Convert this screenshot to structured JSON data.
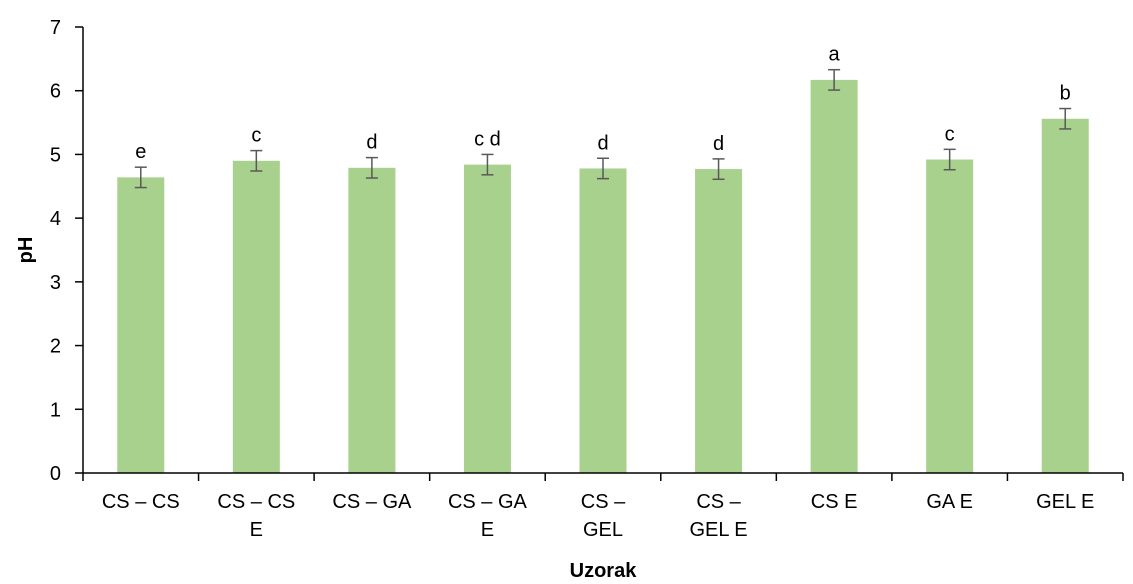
{
  "chart_data": {
    "type": "bar",
    "title": "",
    "xlabel": "Uzorak",
    "ylabel": "pH",
    "ylim": [
      0,
      7
    ],
    "yticks": [
      0,
      1,
      2,
      3,
      4,
      5,
      6,
      7
    ],
    "grid": false,
    "legend": "none",
    "bar_color": "#a9d18e",
    "error_bar_color": "#595959",
    "categories": [
      [
        "CS – CS"
      ],
      [
        "CS – CS",
        "E"
      ],
      [
        "CS – GA"
      ],
      [
        "CS – GA",
        "E"
      ],
      [
        "CS –",
        "GEL"
      ],
      [
        "CS –",
        "GEL E"
      ],
      [
        "CS E"
      ],
      [
        "GA E"
      ],
      [
        "GEL E"
      ]
    ],
    "series": [
      {
        "values": [
          4.64,
          4.9,
          4.79,
          4.84,
          4.78,
          4.77,
          6.17,
          4.92,
          5.56
        ],
        "errors": [
          0.16,
          0.16,
          0.16,
          0.16,
          0.16,
          0.16,
          0.16,
          0.16,
          0.16
        ],
        "labels": [
          "e",
          "c",
          "d",
          "c d",
          "d",
          "d",
          "a",
          "c",
          "b"
        ]
      }
    ]
  }
}
